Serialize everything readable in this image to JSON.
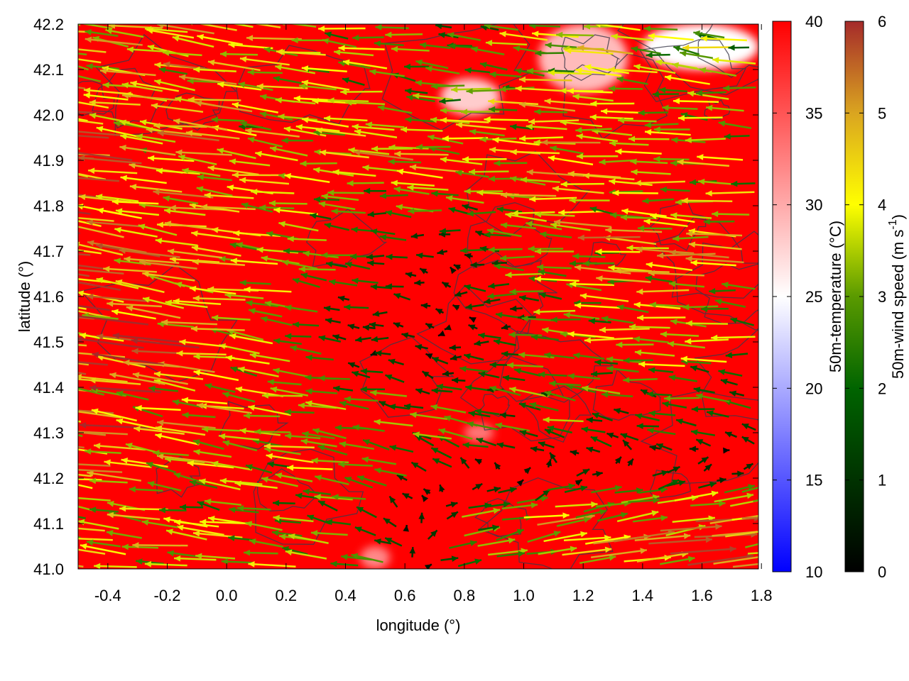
{
  "chart_data": {
    "type": "heatmap",
    "subtype": "vector-field-over-scalar-field",
    "xlabel": "longitude (°)",
    "ylabel": "latitude (°)",
    "xlim": [
      -0.5,
      1.79
    ],
    "ylim": [
      41.0,
      42.2
    ],
    "x_ticks": [
      "-0.4",
      "-0.2",
      "0.0",
      "0.2",
      "0.4",
      "0.6",
      "0.8",
      "1.0",
      "1.2",
      "1.4",
      "1.6",
      "1.8"
    ],
    "x_tick_values": [
      -0.4,
      -0.2,
      0.0,
      0.2,
      0.4,
      0.6,
      0.8,
      1.0,
      1.2,
      1.4,
      1.6,
      1.8
    ],
    "y_ticks": [
      "41.0",
      "41.1",
      "41.2",
      "41.3",
      "41.4",
      "41.5",
      "41.6",
      "41.7",
      "41.8",
      "41.9",
      "42.0",
      "42.1",
      "42.2"
    ],
    "y_tick_values": [
      41.0,
      41.1,
      41.2,
      41.3,
      41.4,
      41.5,
      41.6,
      41.7,
      41.8,
      41.9,
      42.0,
      42.1,
      42.2
    ],
    "grid": false,
    "temperature": {
      "label": "50m-temperature (°C)",
      "range": [
        10,
        40
      ],
      "ticks": [
        "10",
        "15",
        "20",
        "25",
        "30",
        "35",
        "40"
      ],
      "tick_values": [
        10,
        15,
        20,
        25,
        30,
        35,
        40
      ],
      "colormap": [
        "#0000ff",
        "#ffffff",
        "#ff0000"
      ],
      "background_value": 40,
      "cool_patches": [
        {
          "lon": [
            0.72,
            0.92
          ],
          "lat": [
            42.0,
            42.08
          ],
          "value": 28
        },
        {
          "lon": [
            1.05,
            1.35
          ],
          "lat": [
            42.05,
            42.2
          ],
          "value": 29
        },
        {
          "lon": [
            1.4,
            1.79
          ],
          "lat": [
            42.1,
            42.2
          ],
          "value": 25
        },
        {
          "lon": [
            0.8,
            0.9
          ],
          "lat": [
            41.28,
            41.32
          ],
          "value": 33
        },
        {
          "lon": [
            0.45,
            0.55
          ],
          "lat": [
            41.0,
            41.05
          ],
          "value": 32
        }
      ]
    },
    "wind": {
      "label_main": "50m-wind speed (m s",
      "label_sup": "-1",
      "label_end": ")",
      "range": [
        0,
        6
      ],
      "ticks": [
        "0",
        "1",
        "2",
        "3",
        "4",
        "5",
        "6"
      ],
      "tick_values": [
        0,
        1,
        2,
        3,
        4,
        5,
        6
      ],
      "colormap": [
        {
          "v": 0,
          "c": "#000000"
        },
        {
          "v": 2,
          "c": "#006400"
        },
        {
          "v": 3,
          "c": "#5a9a00"
        },
        {
          "v": 4,
          "c": "#ffff00"
        },
        {
          "v": 5,
          "c": "#daa520"
        },
        {
          "v": 6,
          "c": "#a52a2a"
        }
      ],
      "grid_lon": [
        -0.4,
        -0.1,
        0.2,
        0.5,
        0.8,
        1.1,
        1.4,
        1.7
      ],
      "grid_lat": [
        42.1,
        41.9,
        41.7,
        41.5,
        41.3,
        41.1
      ],
      "u": [
        [
          -4.0,
          -4.0,
          -3.5,
          -3.0,
          -2.5,
          -3.0,
          -3.5,
          -3.0
        ],
        [
          -4.5,
          -4.0,
          -3.5,
          -3.5,
          -4.0,
          -4.0,
          -3.5,
          -3.5
        ],
        [
          -5.0,
          -4.5,
          -3.5,
          -2.0,
          -1.0,
          -3.0,
          -4.0,
          -4.0
        ],
        [
          -5.0,
          -4.5,
          -3.0,
          -1.0,
          -0.5,
          -2.5,
          -3.5,
          -3.0
        ],
        [
          -4.5,
          -4.0,
          -3.5,
          -3.0,
          -3.0,
          -2.5,
          -2.0,
          -1.5
        ],
        [
          -4.0,
          -3.5,
          -3.0,
          -2.5,
          3.0,
          4.0,
          4.5,
          4.5
        ]
      ],
      "v": [
        [
          0.6,
          0.5,
          0.4,
          0.3,
          0.2,
          0.2,
          0.3,
          0.3
        ],
        [
          0.6,
          0.5,
          0.4,
          0.3,
          0.3,
          0.3,
          0.2,
          0.2
        ],
        [
          0.7,
          0.6,
          0.4,
          0.2,
          0.1,
          0.2,
          0.2,
          0.2
        ],
        [
          0.7,
          0.6,
          0.4,
          0.1,
          0.0,
          0.1,
          0.2,
          0.2
        ],
        [
          0.6,
          0.5,
          0.4,
          0.5,
          0.6,
          0.5,
          0.4,
          0.3
        ],
        [
          0.5,
          0.4,
          0.4,
          0.6,
          0.6,
          0.6,
          0.6,
          0.5
        ]
      ]
    }
  }
}
